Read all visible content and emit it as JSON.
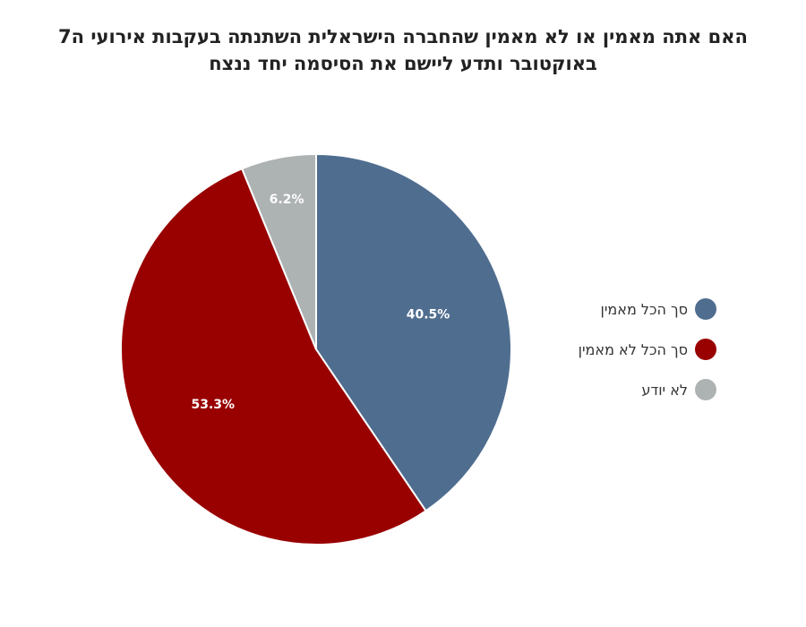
{
  "chart_data": {
    "type": "pie",
    "title_lines": [
      "האם אתה מאמין או לא מאמין שהחברה הישראלית השתנתה בעקבות אירועי ה7",
      "באוקטובר ותדע ליישם את הסיסמה יחד ננצח"
    ],
    "slices": [
      {
        "name": "סך הכל מאמין",
        "value": 40.5,
        "label": "40.5%",
        "color": "#4f6d8f"
      },
      {
        "name": "סך הכל לא מאמין",
        "value": 53.3,
        "label": "53.3%",
        "color": "#990000"
      },
      {
        "name": "לא יודע",
        "value": 6.2,
        "label": "6.2%",
        "color": "#adb2b2"
      }
    ],
    "start_angle": "12 o'clock",
    "direction": "clockwise",
    "legend_position": "right"
  }
}
